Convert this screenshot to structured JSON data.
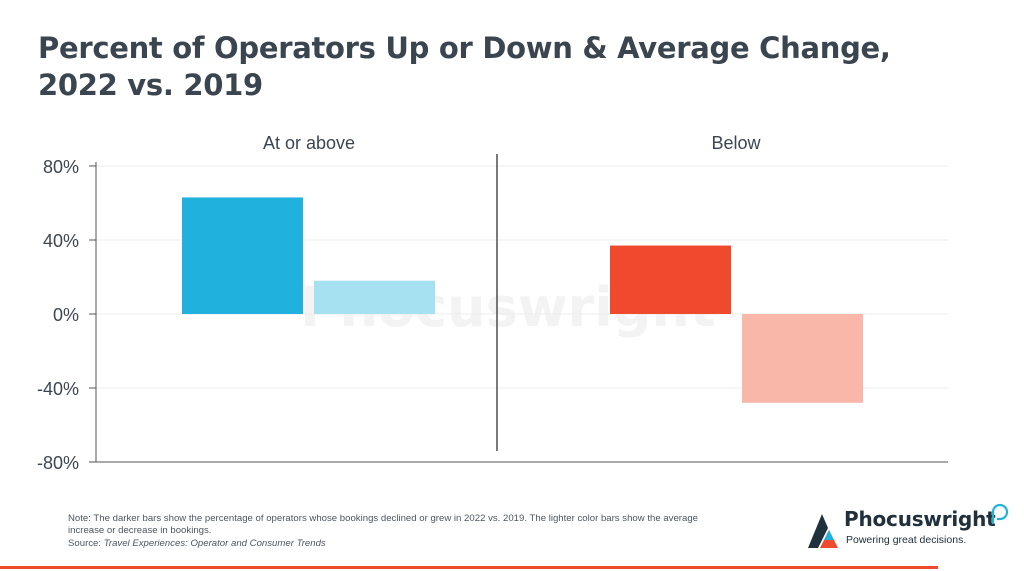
{
  "title_line1": "Percent of Operators Up or Down & Average Change,",
  "title_line2": "2022 vs. 2019",
  "note": "Note: The darker bars show the percentage of operators whose bookings declined or grew in 2022 vs. 2019. The lighter color bars show the average increase or decrease in bookings.",
  "source_label": "Source: ",
  "source_title": "Travel Experiences: Operator and Consumer Trends",
  "logo": {
    "name": "Phocuswright",
    "tagline": "Powering great decisions.",
    "icon": "phocuswright-logo-icon"
  },
  "watermark": "Phocuswright",
  "colors": {
    "dark_up": "#20b1dc",
    "light_up": "#a6e1f2",
    "dark_down": "#f04a2e",
    "light_down": "#f8b7a9",
    "accent_rule": "#f04a2e"
  },
  "chart_data": {
    "type": "bar",
    "groups": [
      "At or above",
      "Below"
    ],
    "ylim": [
      -80,
      80
    ],
    "yticks": [
      "80%",
      "40%",
      "0%",
      "-40%",
      "-80%"
    ],
    "ytick_values": [
      80,
      40,
      0,
      -40,
      -80
    ],
    "series": [
      {
        "values": [
          63,
          37
        ]
      },
      {
        "values": [
          18,
          -48
        ]
      }
    ],
    "grid": true
  }
}
